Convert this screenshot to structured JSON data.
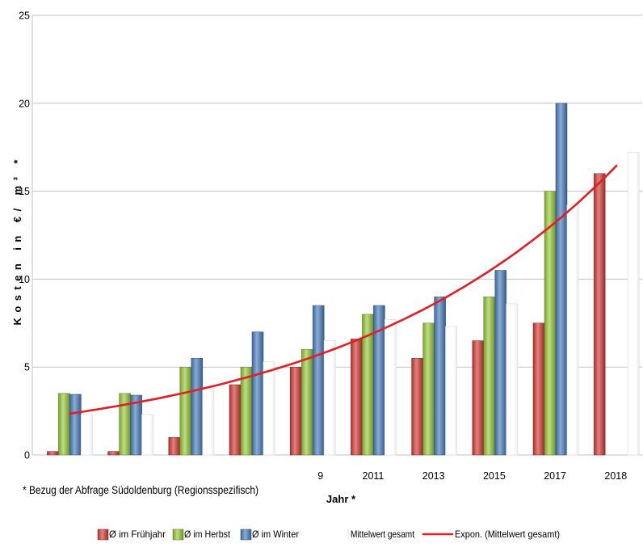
{
  "chart_data": {
    "type": "bar",
    "categories": [
      "",
      "",
      "",
      "",
      "9",
      "2011",
      "2013",
      "2015",
      "2017",
      "2018"
    ],
    "series": [
      {
        "name": "Ø im Frühjahr",
        "color": "#d9403c",
        "values": [
          0.2,
          0.2,
          1.0,
          4.0,
          5.0,
          6.6,
          5.5,
          6.5,
          7.5,
          16.0
        ]
      },
      {
        "name": "Ø im Herbst",
        "color": "#9ccf3f",
        "values": [
          3.5,
          3.5,
          5.0,
          5.0,
          6.0,
          8.0,
          7.5,
          9.0,
          15.0,
          null
        ]
      },
      {
        "name": "Ø im Winter",
        "color": "#4f83c4",
        "values": [
          3.45,
          3.4,
          5.5,
          7.0,
          8.5,
          8.5,
          9.0,
          10.5,
          20.0,
          null
        ]
      },
      {
        "name": "Mittelwert gesamt",
        "color": "#ffffff",
        "values": [
          2.3,
          2.3,
          3.8,
          5.3,
          6.5,
          7.7,
          7.3,
          8.6,
          14.2,
          17.2
        ]
      }
    ],
    "trendline": {
      "name": "Expon. (Mittelwert gesamt)",
      "type": "exponential",
      "color": "#e31e24",
      "values": [
        2.35,
        2.92,
        3.62,
        4.5,
        5.58,
        6.93,
        8.6,
        10.68,
        13.25,
        16.45
      ]
    },
    "xlabel": "Jahr *",
    "ylabel": "Kosten in €/ m³ *",
    "ylim": [
      0,
      25
    ],
    "yticks": [
      0,
      5,
      10,
      15,
      20,
      25
    ],
    "grid": "horizontal",
    "legend": "bottom"
  },
  "footnote": "* Bezug der Abfrage Südoldenburg (Regionsspezifisch)"
}
